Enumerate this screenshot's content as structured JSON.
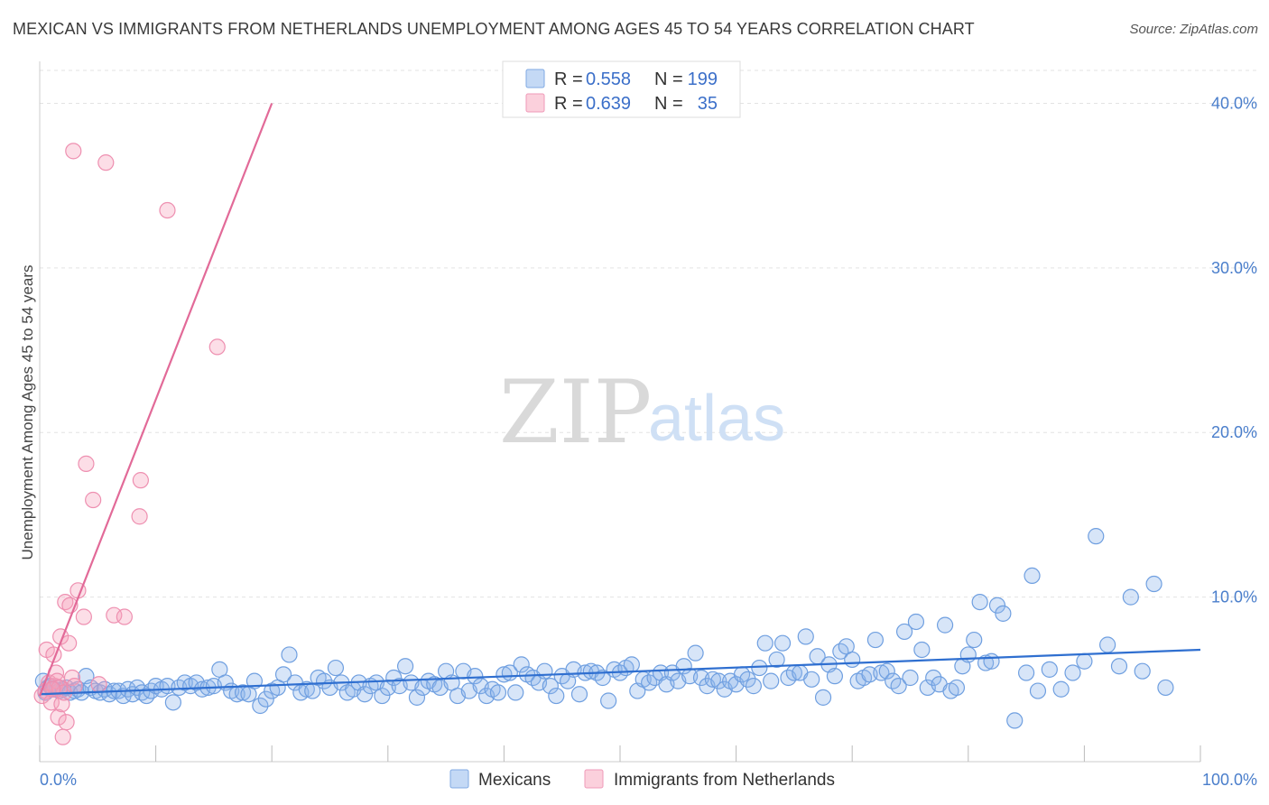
{
  "header": {
    "title": "MEXICAN VS IMMIGRANTS FROM NETHERLANDS UNEMPLOYMENT AMONG AGES 45 TO 54 YEARS CORRELATION CHART",
    "source": "Source: ZipAtlas.com"
  },
  "watermark": {
    "part1": "ZIP",
    "part2": "atlas"
  },
  "legend_top": {
    "rows": [
      {
        "r_label": "R =",
        "r_value": "0.558",
        "n_label": "N =",
        "n_value": "199",
        "color": "#a9c8f0"
      },
      {
        "r_label": "R =",
        "r_value": "0.639",
        "n_label": "N =",
        "n_value": "35",
        "color": "#f7b6c8"
      }
    ]
  },
  "legend_bottom": {
    "items": [
      {
        "label": "Mexicans",
        "color": "#a9c8f0"
      },
      {
        "label": "Immigrants from Netherlands",
        "color": "#f7b6c8"
      }
    ]
  },
  "colors": {
    "blue_fill": "rgba(140,180,235,0.35)",
    "blue_stroke": "#6f9fe0",
    "blue_line": "#2f6fd0",
    "pink_fill": "rgba(245,160,185,0.35)",
    "pink_stroke": "#ee8fb0",
    "pink_line": "#e26a98",
    "grid": "#e3e3e3",
    "tick_text": "#4a7ecb"
  },
  "chart_data": {
    "type": "scatter",
    "title": "MEXICAN VS IMMIGRANTS FROM NETHERLANDS UNEMPLOYMENT AMONG AGES 45 TO 54 YEARS CORRELATION CHART",
    "xlabel": "",
    "ylabel": "Unemployment Among Ages 45 to 54 years",
    "xlim": [
      0,
      100
    ],
    "ylim": [
      0,
      42
    ],
    "x_tick_labels": [
      "0.0%",
      "100.0%"
    ],
    "y_ticks": [
      10,
      20,
      30,
      40
    ],
    "y_tick_labels": [
      "10.0%",
      "20.0%",
      "30.0%",
      "40.0%"
    ],
    "grid": true,
    "series": [
      {
        "name": "Mexicans",
        "R": 0.558,
        "N": 199,
        "trend": {
          "x": [
            0,
            100
          ],
          "y": [
            4.1,
            6.8
          ]
        },
        "points": [
          [
            0.3,
            4.9
          ],
          [
            0.5,
            4.2
          ],
          [
            0.7,
            4.5
          ],
          [
            0.9,
            4.6
          ],
          [
            1.2,
            4.4
          ],
          [
            1.5,
            4.5
          ],
          [
            1.7,
            4.3
          ],
          [
            2.0,
            4.4
          ],
          [
            2.3,
            4.5
          ],
          [
            2.6,
            4.2
          ],
          [
            3.0,
            4.3
          ],
          [
            3.3,
            4.4
          ],
          [
            3.6,
            4.2
          ],
          [
            4.0,
            5.2
          ],
          [
            4.4,
            4.5
          ],
          [
            4.8,
            4.3
          ],
          [
            5.2,
            4.2
          ],
          [
            5.6,
            4.4
          ],
          [
            6.0,
            4.1
          ],
          [
            6.4,
            4.3
          ],
          [
            6.8,
            4.3
          ],
          [
            7.2,
            4.0
          ],
          [
            7.6,
            4.4
          ],
          [
            8.0,
            4.1
          ],
          [
            8.4,
            4.5
          ],
          [
            8.8,
            4.2
          ],
          [
            9.2,
            4.0
          ],
          [
            9.6,
            4.3
          ],
          [
            10.0,
            4.6
          ],
          [
            10.5,
            4.4
          ],
          [
            11.0,
            4.6
          ],
          [
            11.5,
            3.6
          ],
          [
            12.0,
            4.5
          ],
          [
            12.5,
            4.8
          ],
          [
            13.0,
            4.6
          ],
          [
            13.5,
            4.8
          ],
          [
            14.0,
            4.4
          ],
          [
            14.5,
            4.5
          ],
          [
            15.0,
            4.6
          ],
          [
            15.5,
            5.6
          ],
          [
            16.0,
            4.8
          ],
          [
            16.5,
            4.3
          ],
          [
            17.0,
            4.1
          ],
          [
            17.5,
            4.2
          ],
          [
            18.0,
            4.1
          ],
          [
            18.5,
            4.9
          ],
          [
            19.0,
            3.4
          ],
          [
            19.5,
            3.8
          ],
          [
            20.0,
            4.3
          ],
          [
            20.5,
            4.5
          ],
          [
            21.0,
            5.3
          ],
          [
            21.5,
            6.5
          ],
          [
            22.0,
            4.8
          ],
          [
            22.5,
            4.2
          ],
          [
            23.0,
            4.4
          ],
          [
            23.5,
            4.3
          ],
          [
            24.0,
            5.1
          ],
          [
            24.5,
            4.9
          ],
          [
            25.0,
            4.5
          ],
          [
            25.5,
            5.7
          ],
          [
            26.0,
            4.8
          ],
          [
            26.5,
            4.2
          ],
          [
            27.0,
            4.4
          ],
          [
            27.5,
            4.8
          ],
          [
            28.0,
            4.1
          ],
          [
            28.5,
            4.6
          ],
          [
            29.0,
            4.8
          ],
          [
            29.5,
            4.0
          ],
          [
            30.0,
            4.5
          ],
          [
            30.5,
            5.1
          ],
          [
            31.0,
            4.6
          ],
          [
            31.5,
            5.8
          ],
          [
            32.0,
            4.8
          ],
          [
            32.5,
            3.9
          ],
          [
            33.0,
            4.5
          ],
          [
            33.5,
            4.9
          ],
          [
            34.0,
            4.7
          ],
          [
            34.5,
            4.5
          ],
          [
            35.0,
            5.5
          ],
          [
            35.5,
            4.8
          ],
          [
            36.0,
            4.0
          ],
          [
            36.5,
            5.5
          ],
          [
            37.0,
            4.3
          ],
          [
            37.5,
            5.2
          ],
          [
            38.0,
            4.6
          ],
          [
            38.5,
            4.0
          ],
          [
            39.0,
            4.4
          ],
          [
            39.5,
            4.2
          ],
          [
            40.0,
            5.3
          ],
          [
            40.5,
            5.4
          ],
          [
            41.0,
            4.2
          ],
          [
            41.5,
            5.9
          ],
          [
            42.0,
            5.3
          ],
          [
            42.5,
            5.1
          ],
          [
            43.0,
            4.8
          ],
          [
            43.5,
            5.5
          ],
          [
            44.0,
            4.6
          ],
          [
            44.5,
            4.0
          ],
          [
            45.0,
            5.2
          ],
          [
            45.5,
            4.9
          ],
          [
            46.0,
            5.6
          ],
          [
            46.5,
            4.1
          ],
          [
            47.0,
            5.4
          ],
          [
            47.5,
            5.5
          ],
          [
            48.0,
            5.4
          ],
          [
            48.5,
            5.1
          ],
          [
            49.0,
            3.7
          ],
          [
            49.5,
            5.6
          ],
          [
            50.0,
            5.4
          ],
          [
            50.5,
            5.7
          ],
          [
            51.0,
            5.9
          ],
          [
            51.5,
            4.3
          ],
          [
            52.0,
            5.0
          ],
          [
            52.5,
            4.8
          ],
          [
            53.0,
            5.1
          ],
          [
            53.5,
            5.4
          ],
          [
            54.0,
            4.7
          ],
          [
            54.5,
            5.4
          ],
          [
            55.0,
            4.9
          ],
          [
            55.5,
            5.8
          ],
          [
            56.0,
            5.2
          ],
          [
            56.5,
            6.6
          ],
          [
            57.0,
            5.1
          ],
          [
            57.5,
            4.6
          ],
          [
            58.0,
            5.0
          ],
          [
            58.5,
            4.9
          ],
          [
            59.0,
            4.4
          ],
          [
            59.5,
            4.9
          ],
          [
            60.0,
            4.7
          ],
          [
            60.5,
            5.3
          ],
          [
            61.0,
            5.0
          ],
          [
            61.5,
            4.6
          ],
          [
            62.0,
            5.7
          ],
          [
            62.5,
            7.2
          ],
          [
            63.0,
            4.9
          ],
          [
            63.5,
            6.2
          ],
          [
            64.0,
            7.2
          ],
          [
            64.5,
            5.1
          ],
          [
            65.0,
            5.4
          ],
          [
            65.5,
            5.4
          ],
          [
            66.0,
            7.6
          ],
          [
            66.5,
            5.0
          ],
          [
            67.0,
            6.4
          ],
          [
            67.5,
            3.9
          ],
          [
            68.0,
            5.9
          ],
          [
            68.5,
            5.2
          ],
          [
            69.0,
            6.7
          ],
          [
            69.5,
            7.0
          ],
          [
            70.0,
            6.2
          ],
          [
            70.5,
            4.9
          ],
          [
            71.0,
            5.1
          ],
          [
            71.5,
            5.3
          ],
          [
            72.0,
            7.4
          ],
          [
            72.5,
            5.4
          ],
          [
            73.0,
            5.5
          ],
          [
            73.5,
            4.9
          ],
          [
            74.0,
            4.6
          ],
          [
            74.5,
            7.9
          ],
          [
            75.0,
            5.1
          ],
          [
            75.5,
            8.5
          ],
          [
            76.0,
            6.8
          ],
          [
            76.5,
            4.5
          ],
          [
            77.0,
            5.1
          ],
          [
            77.5,
            4.7
          ],
          [
            78.0,
            8.3
          ],
          [
            78.5,
            4.3
          ],
          [
            79.0,
            4.5
          ],
          [
            79.5,
            5.8
          ],
          [
            80.0,
            6.5
          ],
          [
            80.5,
            7.4
          ],
          [
            81.0,
            9.7
          ],
          [
            81.5,
            6.0
          ],
          [
            82.0,
            6.1
          ],
          [
            82.5,
            9.5
          ],
          [
            83.0,
            9.0
          ],
          [
            84.0,
            2.5
          ],
          [
            85.0,
            5.4
          ],
          [
            85.5,
            11.3
          ],
          [
            86.0,
            4.3
          ],
          [
            87.0,
            5.6
          ],
          [
            88.0,
            4.4
          ],
          [
            89.0,
            5.4
          ],
          [
            90.0,
            6.1
          ],
          [
            91.0,
            13.7
          ],
          [
            92.0,
            7.1
          ],
          [
            93.0,
            5.8
          ],
          [
            94.0,
            10.0
          ],
          [
            95.0,
            5.5
          ],
          [
            96.0,
            10.8
          ],
          [
            97.0,
            4.5
          ]
        ]
      },
      {
        "name": "Immigrants from Netherlands",
        "R": 0.639,
        "N": 35,
        "trend": {
          "x": [
            0,
            20
          ],
          "y": [
            4.0,
            40.0
          ]
        },
        "points": [
          [
            0.2,
            4.0
          ],
          [
            0.5,
            4.3
          ],
          [
            0.6,
            6.8
          ],
          [
            0.8,
            4.8
          ],
          [
            1.0,
            3.6
          ],
          [
            1.2,
            6.5
          ],
          [
            1.3,
            4.6
          ],
          [
            1.4,
            5.4
          ],
          [
            1.5,
            4.9
          ],
          [
            1.6,
            2.7
          ],
          [
            1.7,
            4.5
          ],
          [
            1.8,
            7.6
          ],
          [
            1.9,
            3.5
          ],
          [
            2.0,
            1.5
          ],
          [
            2.1,
            4.2
          ],
          [
            2.2,
            9.7
          ],
          [
            2.3,
            2.4
          ],
          [
            2.5,
            7.2
          ],
          [
            2.6,
            9.5
          ],
          [
            2.8,
            5.1
          ],
          [
            3.0,
            4.6
          ],
          [
            3.3,
            10.4
          ],
          [
            3.8,
            8.8
          ],
          [
            4.0,
            18.1
          ],
          [
            4.6,
            15.9
          ],
          [
            5.1,
            4.7
          ],
          [
            5.7,
            36.4
          ],
          [
            6.4,
            8.9
          ],
          [
            7.3,
            8.8
          ],
          [
            8.6,
            14.9
          ],
          [
            8.7,
            17.1
          ],
          [
            11.0,
            33.5
          ],
          [
            15.3,
            25.2
          ],
          [
            2.9,
            37.1
          ],
          [
            1.1,
            4.4
          ]
        ]
      }
    ]
  },
  "axes": {
    "y_label": "Unemployment Among Ages 45 to 54 years",
    "x_min_label": "0.0%",
    "x_max_label": "100.0%"
  }
}
